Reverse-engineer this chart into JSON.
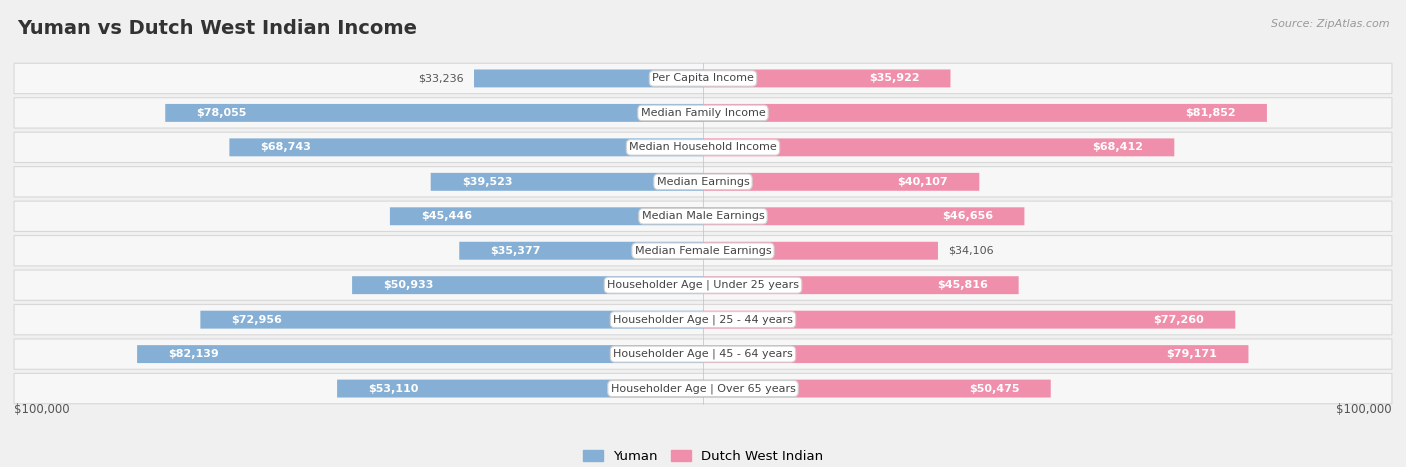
{
  "title": "Yuman vs Dutch West Indian Income",
  "source": "Source: ZipAtlas.com",
  "categories": [
    "Per Capita Income",
    "Median Family Income",
    "Median Household Income",
    "Median Earnings",
    "Median Male Earnings",
    "Median Female Earnings",
    "Householder Age | Under 25 years",
    "Householder Age | 25 - 44 years",
    "Householder Age | 45 - 64 years",
    "Householder Age | Over 65 years"
  ],
  "yuman_values": [
    33236,
    78055,
    68743,
    39523,
    45446,
    35377,
    50933,
    72956,
    82139,
    53110
  ],
  "dutch_values": [
    35922,
    81852,
    68412,
    40107,
    46656,
    34106,
    45816,
    77260,
    79171,
    50475
  ],
  "yuman_labels": [
    "$33,236",
    "$78,055",
    "$68,743",
    "$39,523",
    "$45,446",
    "$35,377",
    "$50,933",
    "$72,956",
    "$82,139",
    "$53,110"
  ],
  "dutch_labels": [
    "$35,922",
    "$81,852",
    "$68,412",
    "$40,107",
    "$46,656",
    "$34,106",
    "$45,816",
    "$77,260",
    "$79,171",
    "$50,475"
  ],
  "max_val": 100000,
  "yuman_color": "#85afd4",
  "dutch_color": "#f08fac",
  "yuman_color_label": "#5b8ec4",
  "dutch_color_label": "#e0607e",
  "bg_color": "#f0f0f0",
  "row_bg": "#f7f7f7",
  "row_border": "#d8d8d8",
  "legend_yuman": "Yuman",
  "legend_dutch": "Dutch West Indian",
  "xlabel_left": "$100,000",
  "xlabel_right": "$100,000"
}
